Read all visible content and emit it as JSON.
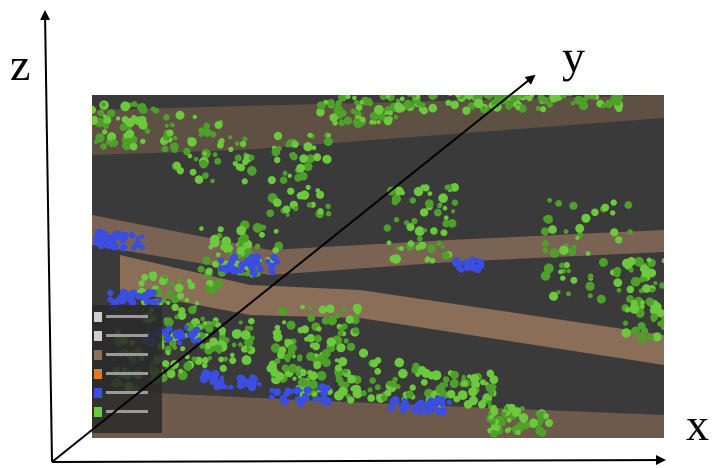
{
  "axes": {
    "x_label": "x",
    "y_label": "y",
    "z_label": "z"
  },
  "point_cloud": {
    "colors": {
      "background": "#3a3a3a",
      "vegetation": "#6cc83c",
      "ground": "#8a6e58",
      "water": "#3c4ee0"
    },
    "legend_swatches": [
      "#cfcfcf",
      "#cfcfcf",
      "#8a6e58",
      "#e07a2a",
      "#3c4ee0",
      "#6cc83c"
    ]
  }
}
